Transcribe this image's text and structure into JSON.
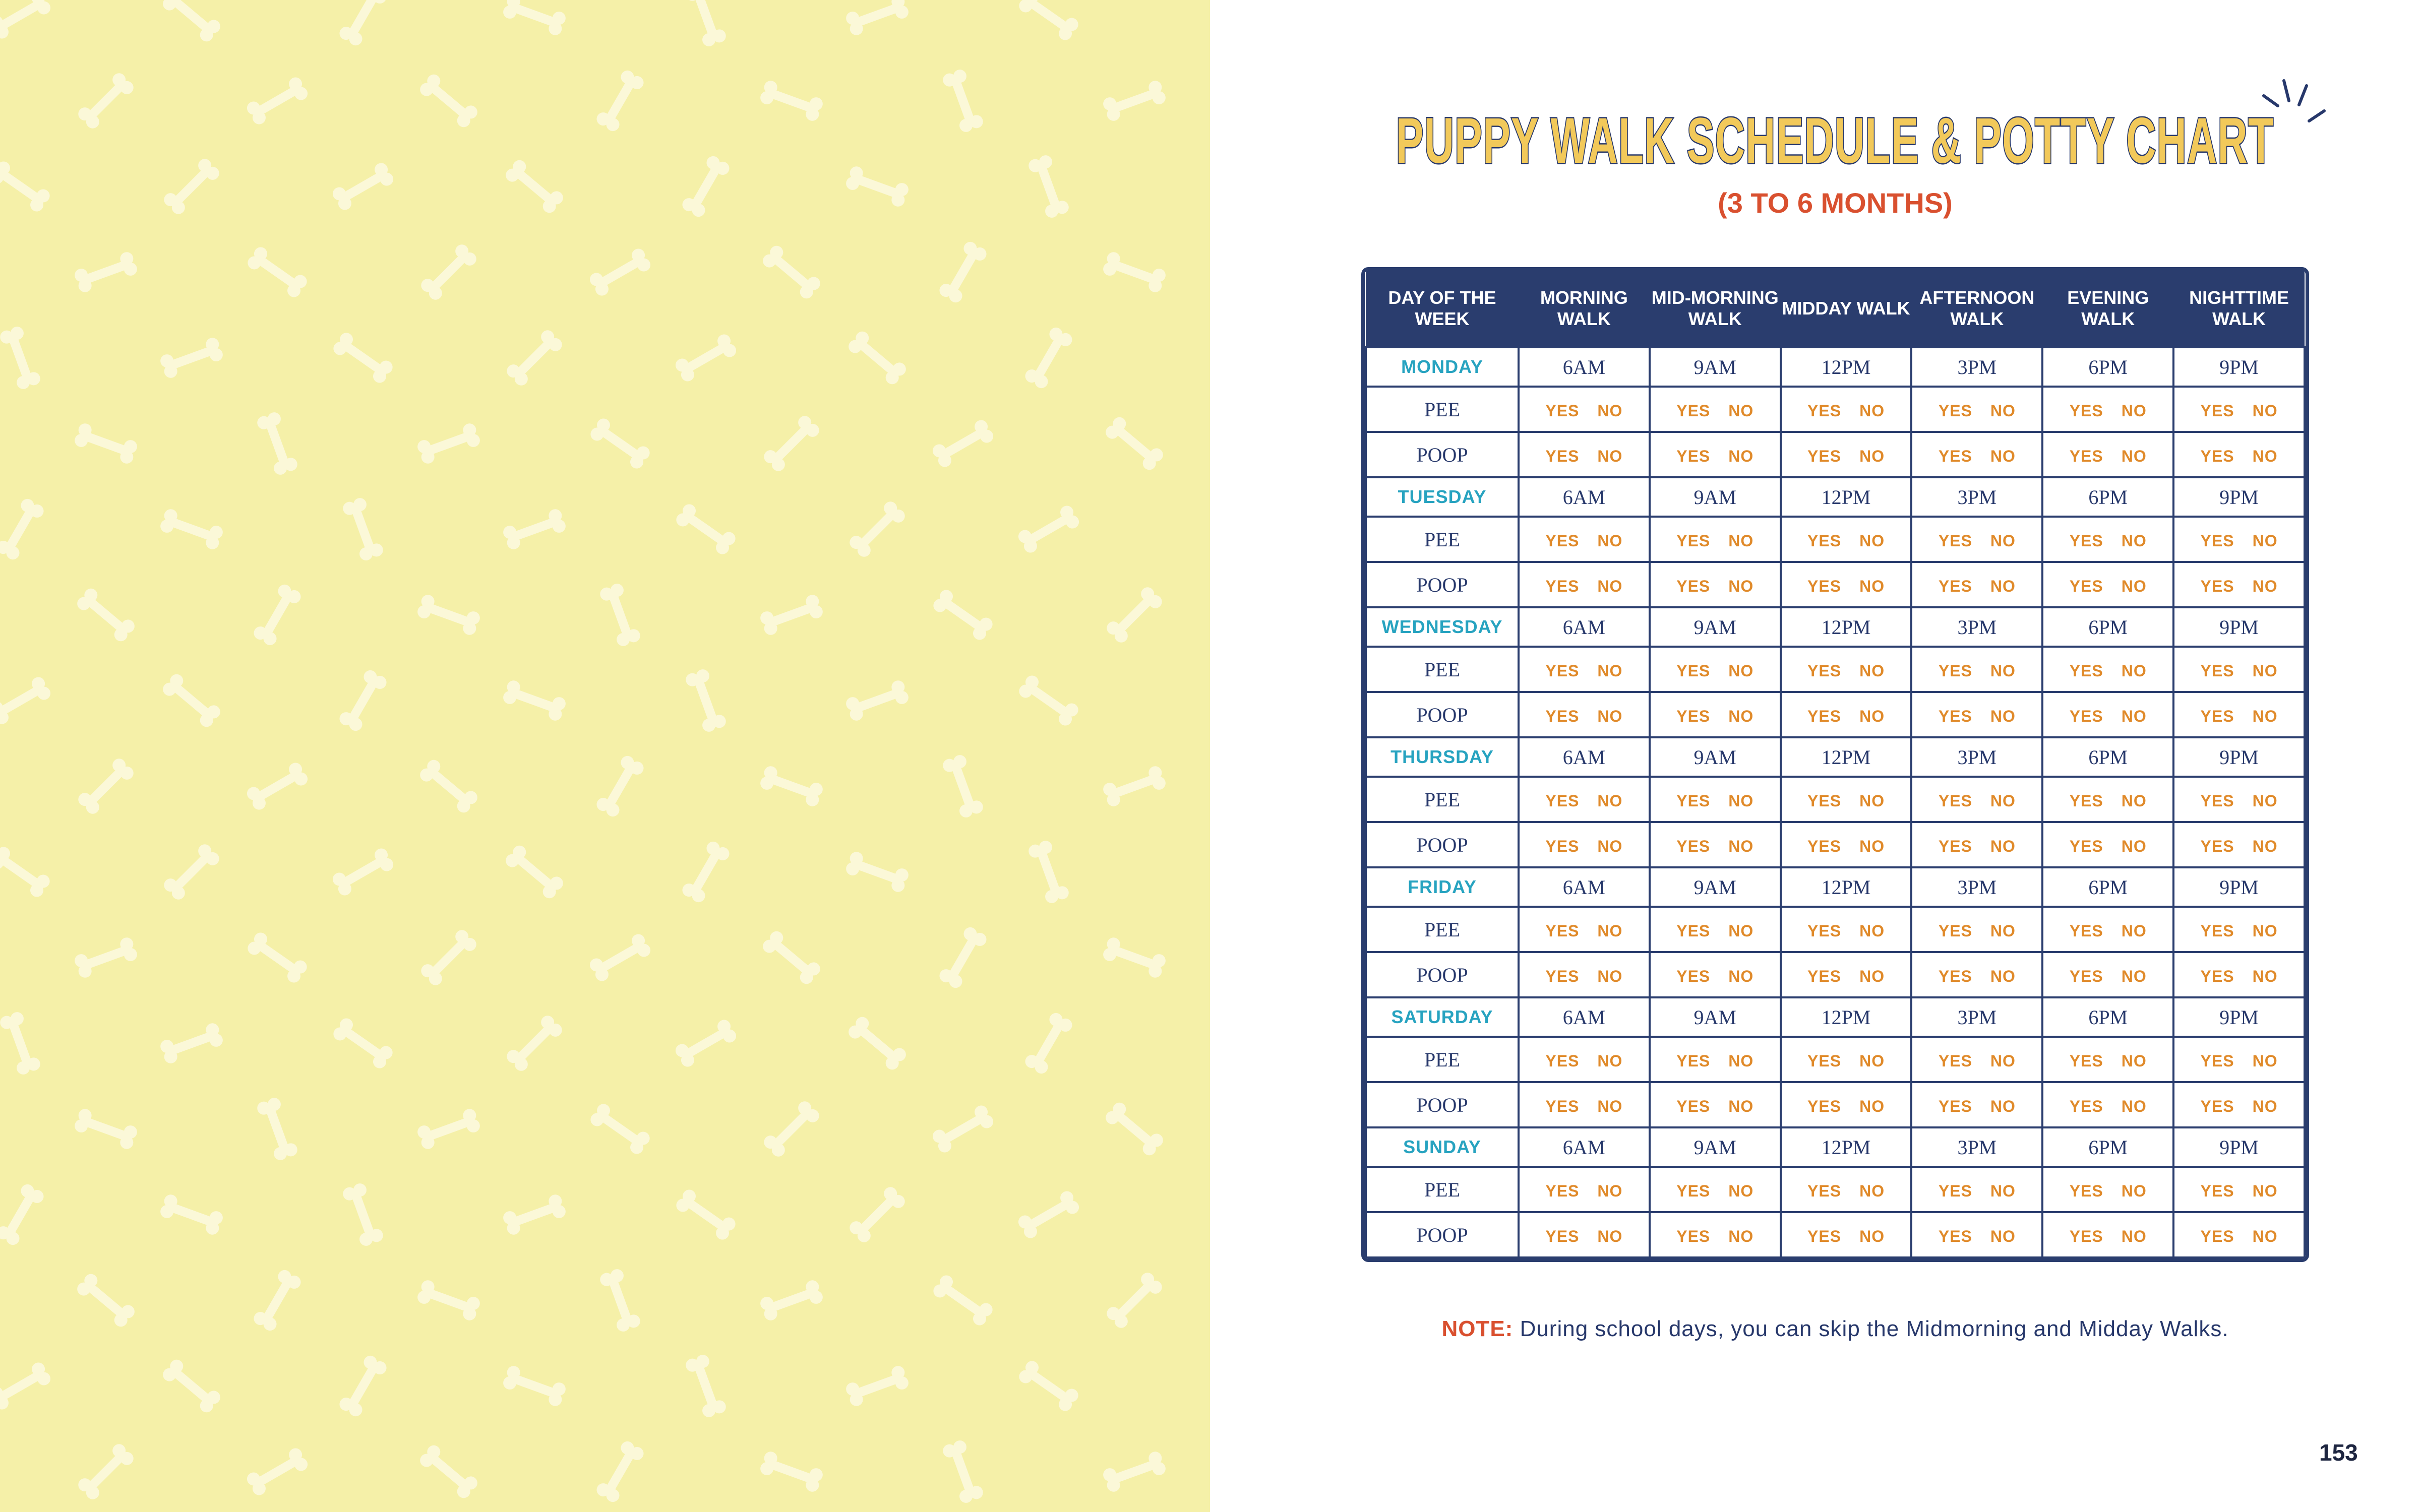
{
  "title": "PUPPY WALK SCHEDULE & POTTY CHART",
  "subtitle": "(3 TO 6 MONTHS)",
  "columns": [
    "DAY OF THE WEEK",
    "MORNING WALK",
    "MID-MORNING WALK",
    "MIDDAY WALK",
    "AFTERNOON WALK",
    "EVENING WALK",
    "NIGHTTIME WALK"
  ],
  "times": [
    "6AM",
    "9AM",
    "12PM",
    "3PM",
    "6PM",
    "9PM"
  ],
  "days": [
    "MONDAY",
    "TUESDAY",
    "WEDNESDAY",
    "THURSDAY",
    "FRIDAY",
    "SATURDAY",
    "SUNDAY"
  ],
  "row_labels": [
    "PEE",
    "POOP"
  ],
  "yes_label": "YES",
  "no_label": "NO",
  "note": {
    "label": "NOTE:",
    "text": "During school days, you can skip the Midmorning and Midday Walks."
  },
  "page_number": "153",
  "colors": {
    "navy": "#2a3d6e",
    "yellow": "#f5f0a8",
    "title_fill": "#f2c95a",
    "accent_red": "#d9502f",
    "day_teal": "#27a3c0",
    "yesno_orange": "#e08a2a"
  }
}
